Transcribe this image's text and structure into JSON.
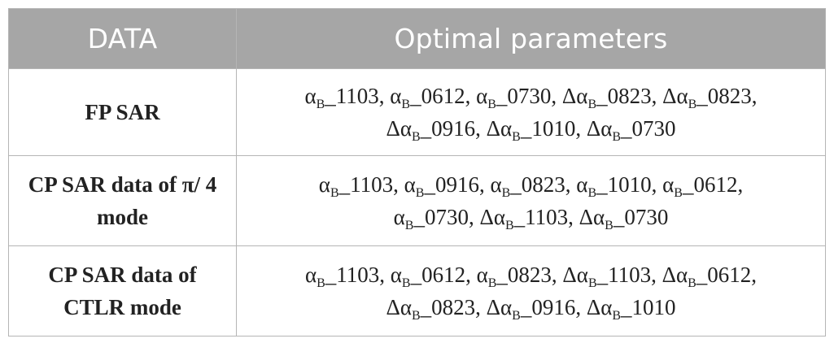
{
  "table": {
    "headers": [
      "DATA",
      "Optimal parameters"
    ],
    "rows": [
      {
        "data": "FP SAR",
        "lines": [
          [
            {
              "delta": "",
              "suffix": "1103"
            },
            {
              "delta": "",
              "suffix": "0612"
            },
            {
              "delta": "",
              "suffix": "0730"
            },
            {
              "delta": "Δ",
              "suffix": "0823"
            },
            {
              "delta": "Δ",
              "suffix": "0823"
            }
          ],
          [
            {
              "delta": "Δ",
              "suffix": "0916"
            },
            {
              "delta": "Δ",
              "suffix": "1010"
            },
            {
              "delta": "Δ",
              "suffix": "0730"
            }
          ]
        ]
      },
      {
        "data": "CP SAR data of π/ 4 mode",
        "lines": [
          [
            {
              "delta": "",
              "suffix": "1103"
            },
            {
              "delta": "",
              "suffix": "0916"
            },
            {
              "delta": "",
              "suffix": "0823"
            },
            {
              "delta": "",
              "suffix": "1010"
            },
            {
              "delta": "",
              "suffix": "0612"
            }
          ],
          [
            {
              "delta": "",
              "suffix": "0730"
            },
            {
              "delta": "Δ",
              "suffix": "1103"
            },
            {
              "delta": "Δ",
              "suffix": "0730"
            }
          ]
        ]
      },
      {
        "data": "CP SAR data of CTLR mode",
        "lines": [
          [
            {
              "delta": "",
              "suffix": "1103"
            },
            {
              "delta": "",
              "suffix": "0612"
            },
            {
              "delta": "",
              "suffix": "0823"
            },
            {
              "delta": "Δ",
              "suffix": "1103"
            },
            {
              "delta": "Δ",
              "suffix": "0612"
            }
          ],
          [
            {
              "delta": "Δ",
              "suffix": "0823"
            },
            {
              "delta": "Δ",
              "suffix": "0916"
            },
            {
              "delta": "Δ",
              "suffix": "1010"
            }
          ]
        ]
      }
    ],
    "symbol": "α",
    "subscript": "B",
    "separator": "_"
  }
}
